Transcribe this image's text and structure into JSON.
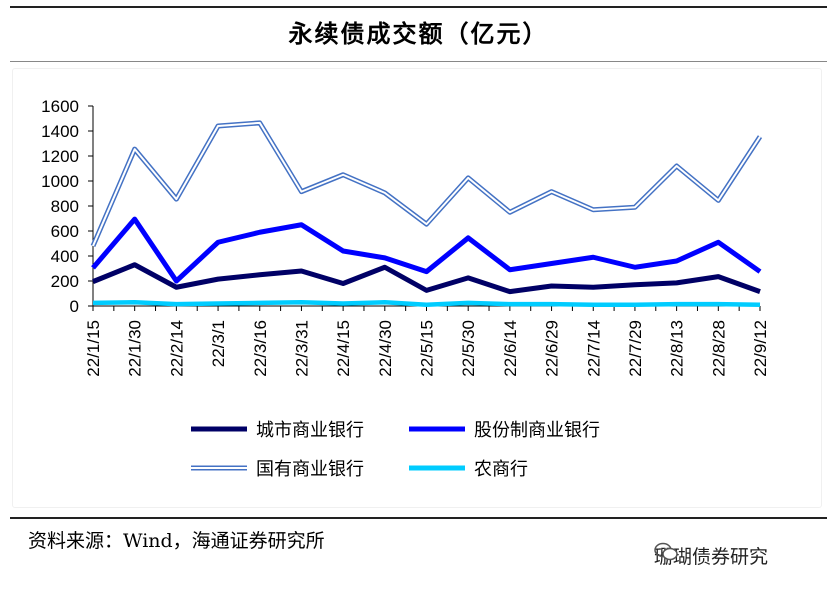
{
  "header": {
    "title": "永续债成交额（亿元）"
  },
  "footer": {
    "source": "资料来源：Wind，海通证券研究所"
  },
  "watermark": {
    "text": "珊瑚债券研究",
    "icon": "wechat-icon"
  },
  "chart_data": {
    "type": "line",
    "title": "永续债成交额（亿元）",
    "xlabel": "",
    "ylabel": "",
    "ylim": [
      0,
      1600
    ],
    "yticks": [
      0,
      200,
      400,
      600,
      800,
      1000,
      1200,
      1400,
      1600
    ],
    "grid": false,
    "legend_position": "bottom",
    "categories": [
      "22/1/15",
      "22/1/30",
      "22/2/14",
      "22/3/1",
      "22/3/16",
      "22/3/31",
      "22/4/15",
      "22/4/30",
      "22/5/15",
      "22/5/30",
      "22/6/14",
      "22/6/29",
      "22/7/14",
      "22/7/29",
      "22/8/13",
      "22/8/28",
      "22/9/12"
    ],
    "x": [
      "22/1/15",
      "",
      "22/1/30",
      "",
      "22/2/14",
      "",
      "22/3/1",
      "",
      "22/3/16",
      "",
      "22/3/31",
      "",
      "22/4/15",
      "",
      "22/4/30",
      "",
      "22/5/15",
      "",
      "22/5/30",
      "",
      "22/6/14",
      "",
      "22/6/29",
      "",
      "22/7/14",
      "",
      "22/7/29",
      "",
      "22/8/13",
      "",
      "22/8/28",
      "",
      "22/9/12"
    ],
    "series": [
      {
        "name": "城市商业银行",
        "color": "#000066",
        "style": "solid",
        "values": [
          195,
          330,
          150,
          215,
          250,
          280,
          180,
          310,
          125,
          225,
          115,
          160,
          150,
          170,
          185,
          235,
          115
        ]
      },
      {
        "name": "股份制商业银行",
        "color": "#0000ff",
        "style": "solid",
        "values": [
          305,
          695,
          200,
          510,
          590,
          650,
          440,
          385,
          275,
          545,
          290,
          340,
          390,
          310,
          360,
          510,
          275
        ]
      },
      {
        "name": "国有商业银行",
        "color": "#4472c4",
        "style": "double",
        "values": [
          480,
          1255,
          855,
          1440,
          1465,
          915,
          1050,
          905,
          655,
          1025,
          750,
          915,
          770,
          790,
          1120,
          845,
          1355
        ]
      },
      {
        "name": "农商行",
        "color": "#00ccff",
        "style": "solid",
        "values": [
          25,
          30,
          15,
          20,
          25,
          30,
          20,
          30,
          10,
          25,
          15,
          15,
          10,
          10,
          15,
          15,
          10
        ]
      }
    ]
  }
}
